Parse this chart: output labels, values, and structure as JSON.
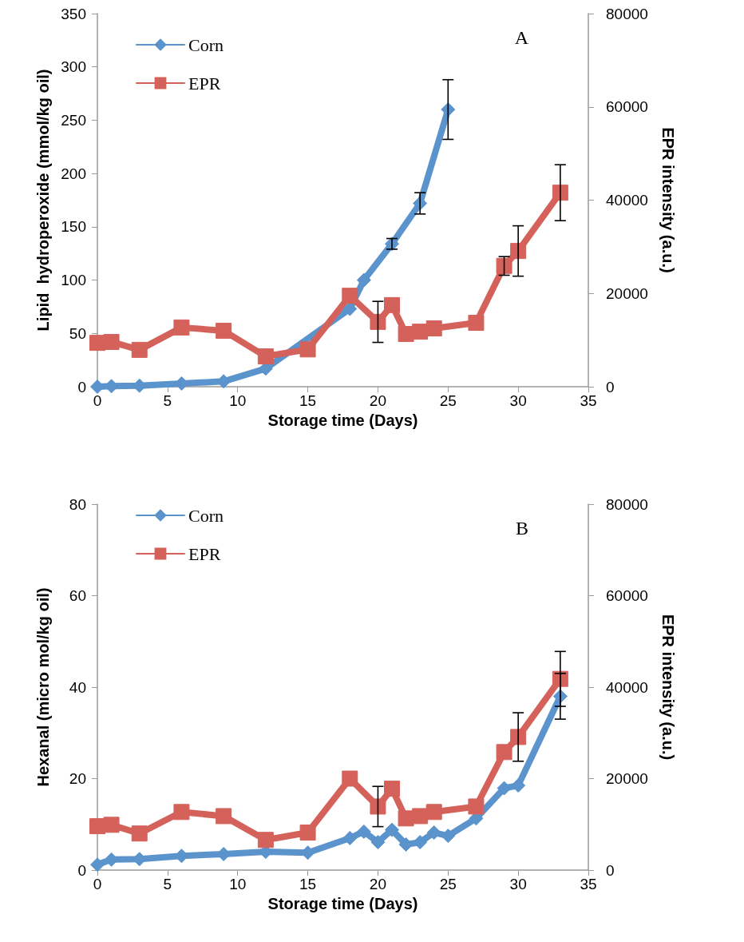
{
  "chart_data": [
    {
      "type": "line",
      "xlabel": "Storage time (Days)",
      "ylabel": "Lipid  hydroperoxide (mmol/kg oil)",
      "y2label": "EPR intensity (a.u.)",
      "annotations": [
        "A"
      ],
      "xlim": [
        0,
        35
      ],
      "xticks": [
        0,
        5,
        10,
        15,
        20,
        25,
        30,
        35
      ],
      "ylim": [
        0,
        350
      ],
      "yticks": [
        0,
        50,
        100,
        150,
        200,
        250,
        300,
        350
      ],
      "y2lim": [
        0,
        80000
      ],
      "y2ticks": [
        0,
        20000,
        40000,
        60000,
        80000
      ],
      "grid": false,
      "legend": "top left",
      "line_style": "solid",
      "series": [
        {
          "name": "Corn",
          "color": "#5b93cc",
          "marker": "diamond",
          "x": [
            0,
            1,
            3,
            6,
            9,
            12,
            15,
            18,
            19,
            21,
            23,
            25
          ],
          "values": [
            0,
            0.5,
            1,
            3,
            5,
            17,
            null,
            73,
            100,
            134,
            172,
            260
          ],
          "errors": [
            null,
            null,
            null,
            null,
            null,
            null,
            null,
            null,
            null,
            5,
            10,
            28
          ]
        },
        {
          "name": "EPR",
          "color": "#d4625b",
          "marker": "square",
          "axis": "y2",
          "x": [
            0,
            1,
            3,
            6,
            9,
            12,
            15,
            18,
            20,
            21,
            22,
            23,
            24,
            27,
            29,
            30,
            33
          ],
          "values": [
            9400,
            9600,
            7900,
            12700,
            12000,
            6500,
            8000,
            19500,
            13900,
            17500,
            11300,
            11800,
            12500,
            13700,
            25900,
            29100,
            41600
          ],
          "errors": [
            null,
            null,
            null,
            null,
            null,
            null,
            null,
            null,
            4400,
            null,
            null,
            null,
            null,
            null,
            2000,
            5400,
            6000
          ]
        }
      ]
    },
    {
      "type": "line",
      "xlabel": "Storage time (Days)",
      "ylabel": "Hexanal (micro mol/kg oil)",
      "y2label": "EPR intensity (a.u.)",
      "annotations": [
        "B"
      ],
      "xlim": [
        0,
        35
      ],
      "xticks": [
        0,
        5,
        10,
        15,
        20,
        25,
        30,
        35
      ],
      "ylim": [
        0,
        80
      ],
      "yticks": [
        0,
        20,
        40,
        60,
        80
      ],
      "y2lim": [
        0,
        80000
      ],
      "y2ticks": [
        0,
        20000,
        40000,
        60000,
        80000
      ],
      "grid": false,
      "legend": "top left",
      "line_style": "solid",
      "series": [
        {
          "name": "Corn",
          "color": "#5b93cc",
          "marker": "diamond",
          "x": [
            0,
            1,
            3,
            6,
            9,
            12,
            15,
            18,
            19,
            20,
            21,
            22,
            23,
            24,
            25,
            27,
            29,
            30,
            33
          ],
          "values": [
            1.2,
            2.3,
            2.4,
            3.1,
            3.5,
            4.0,
            3.8,
            7.0,
            8.4,
            6.1,
            8.8,
            5.6,
            6.1,
            8.2,
            7.5,
            11.3,
            17.9,
            18.5,
            38
          ],
          "errors": [
            null,
            null,
            null,
            null,
            null,
            null,
            null,
            null,
            null,
            null,
            null,
            null,
            null,
            null,
            null,
            null,
            null,
            null,
            5
          ]
        },
        {
          "name": "EPR",
          "color": "#d4625b",
          "marker": "square",
          "axis": "y2",
          "x": [
            0,
            1,
            3,
            6,
            9,
            12,
            15,
            18,
            20,
            21,
            22,
            23,
            24,
            27,
            29,
            30,
            33
          ],
          "values": [
            9600,
            9900,
            8000,
            12700,
            11800,
            6600,
            8200,
            20000,
            13900,
            17800,
            11300,
            11800,
            12700,
            13900,
            25800,
            29100,
            41800
          ],
          "errors": [
            null,
            null,
            null,
            null,
            null,
            null,
            null,
            null,
            4400,
            null,
            null,
            null,
            null,
            null,
            null,
            5300,
            6000
          ]
        }
      ]
    }
  ]
}
